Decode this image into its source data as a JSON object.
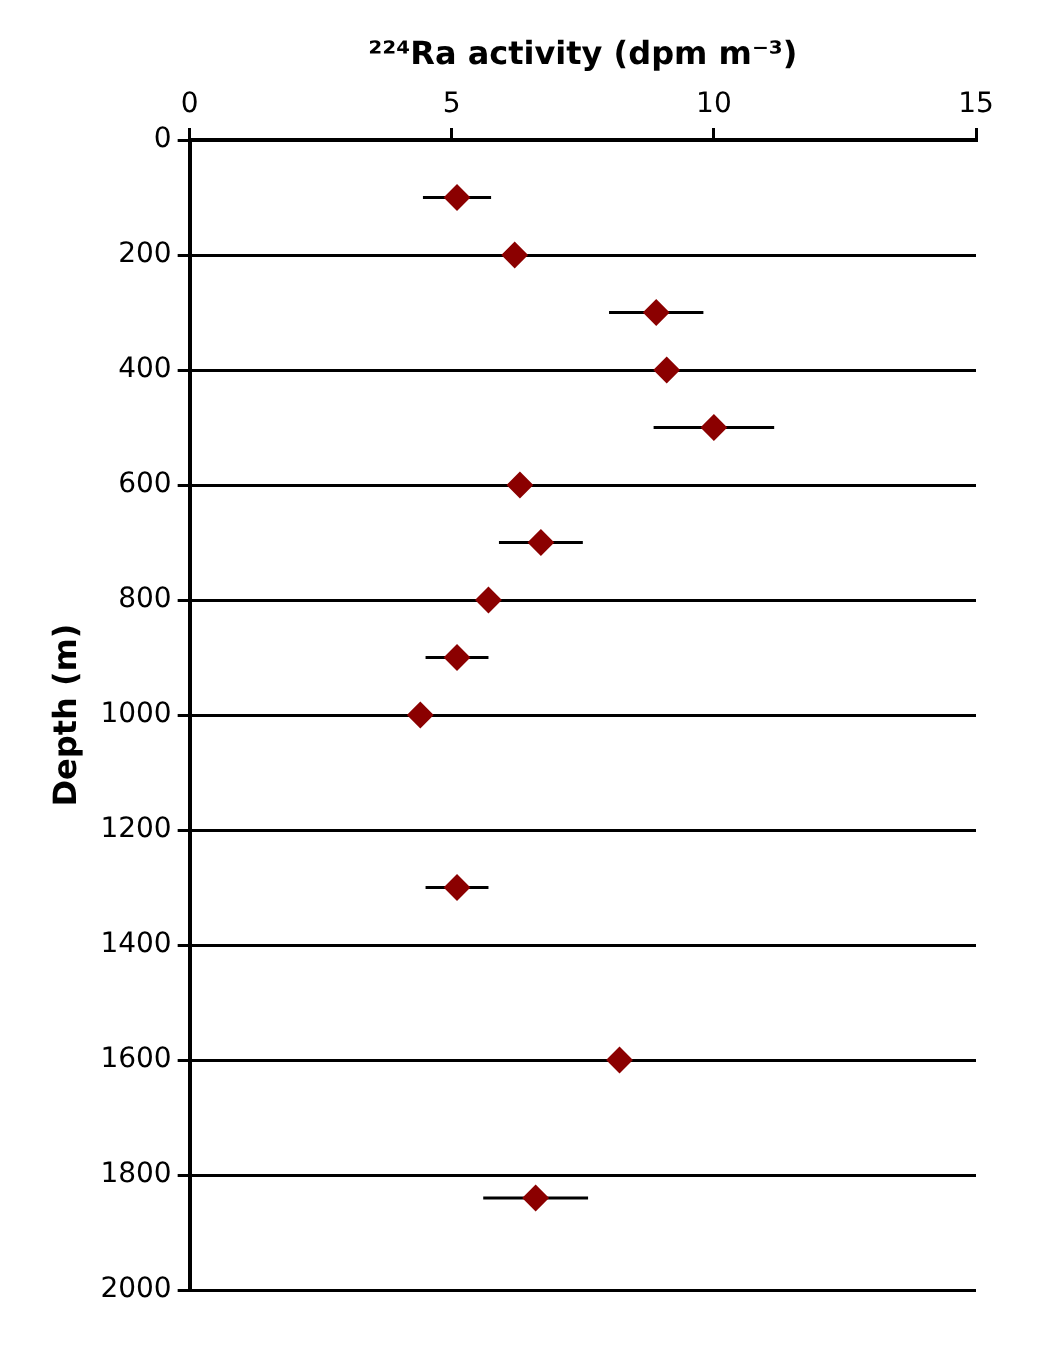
{
  "chart_data": {
    "type": "scatter",
    "xlabel": "²²⁴Ra activity (dpm m⁻³)",
    "ylabel": "Depth (m)",
    "xlim": [
      0,
      15
    ],
    "xticks": [
      0,
      5,
      10,
      15
    ],
    "ylim": [
      2000,
      0
    ],
    "yticks": [
      0,
      200,
      400,
      600,
      800,
      1000,
      1200,
      1400,
      1600,
      1800,
      2000
    ],
    "grid": "y",
    "marker": "diamond",
    "legend": false,
    "series": [
      {
        "color": "#8b0000",
        "x": [
          5.1,
          6.2,
          8.9,
          9.1,
          10.0,
          6.3,
          6.7,
          5.7,
          5.1,
          4.4,
          5.1,
          8.2,
          6.6
        ],
        "values": [
          100,
          200,
          300,
          400,
          500,
          600,
          700,
          800,
          900,
          1000,
          1300,
          1600,
          1840
        ],
        "xerrors": [
          0.65,
          null,
          0.9,
          null,
          1.15,
          null,
          0.8,
          null,
          0.6,
          null,
          0.6,
          null,
          1.0
        ]
      }
    ]
  }
}
